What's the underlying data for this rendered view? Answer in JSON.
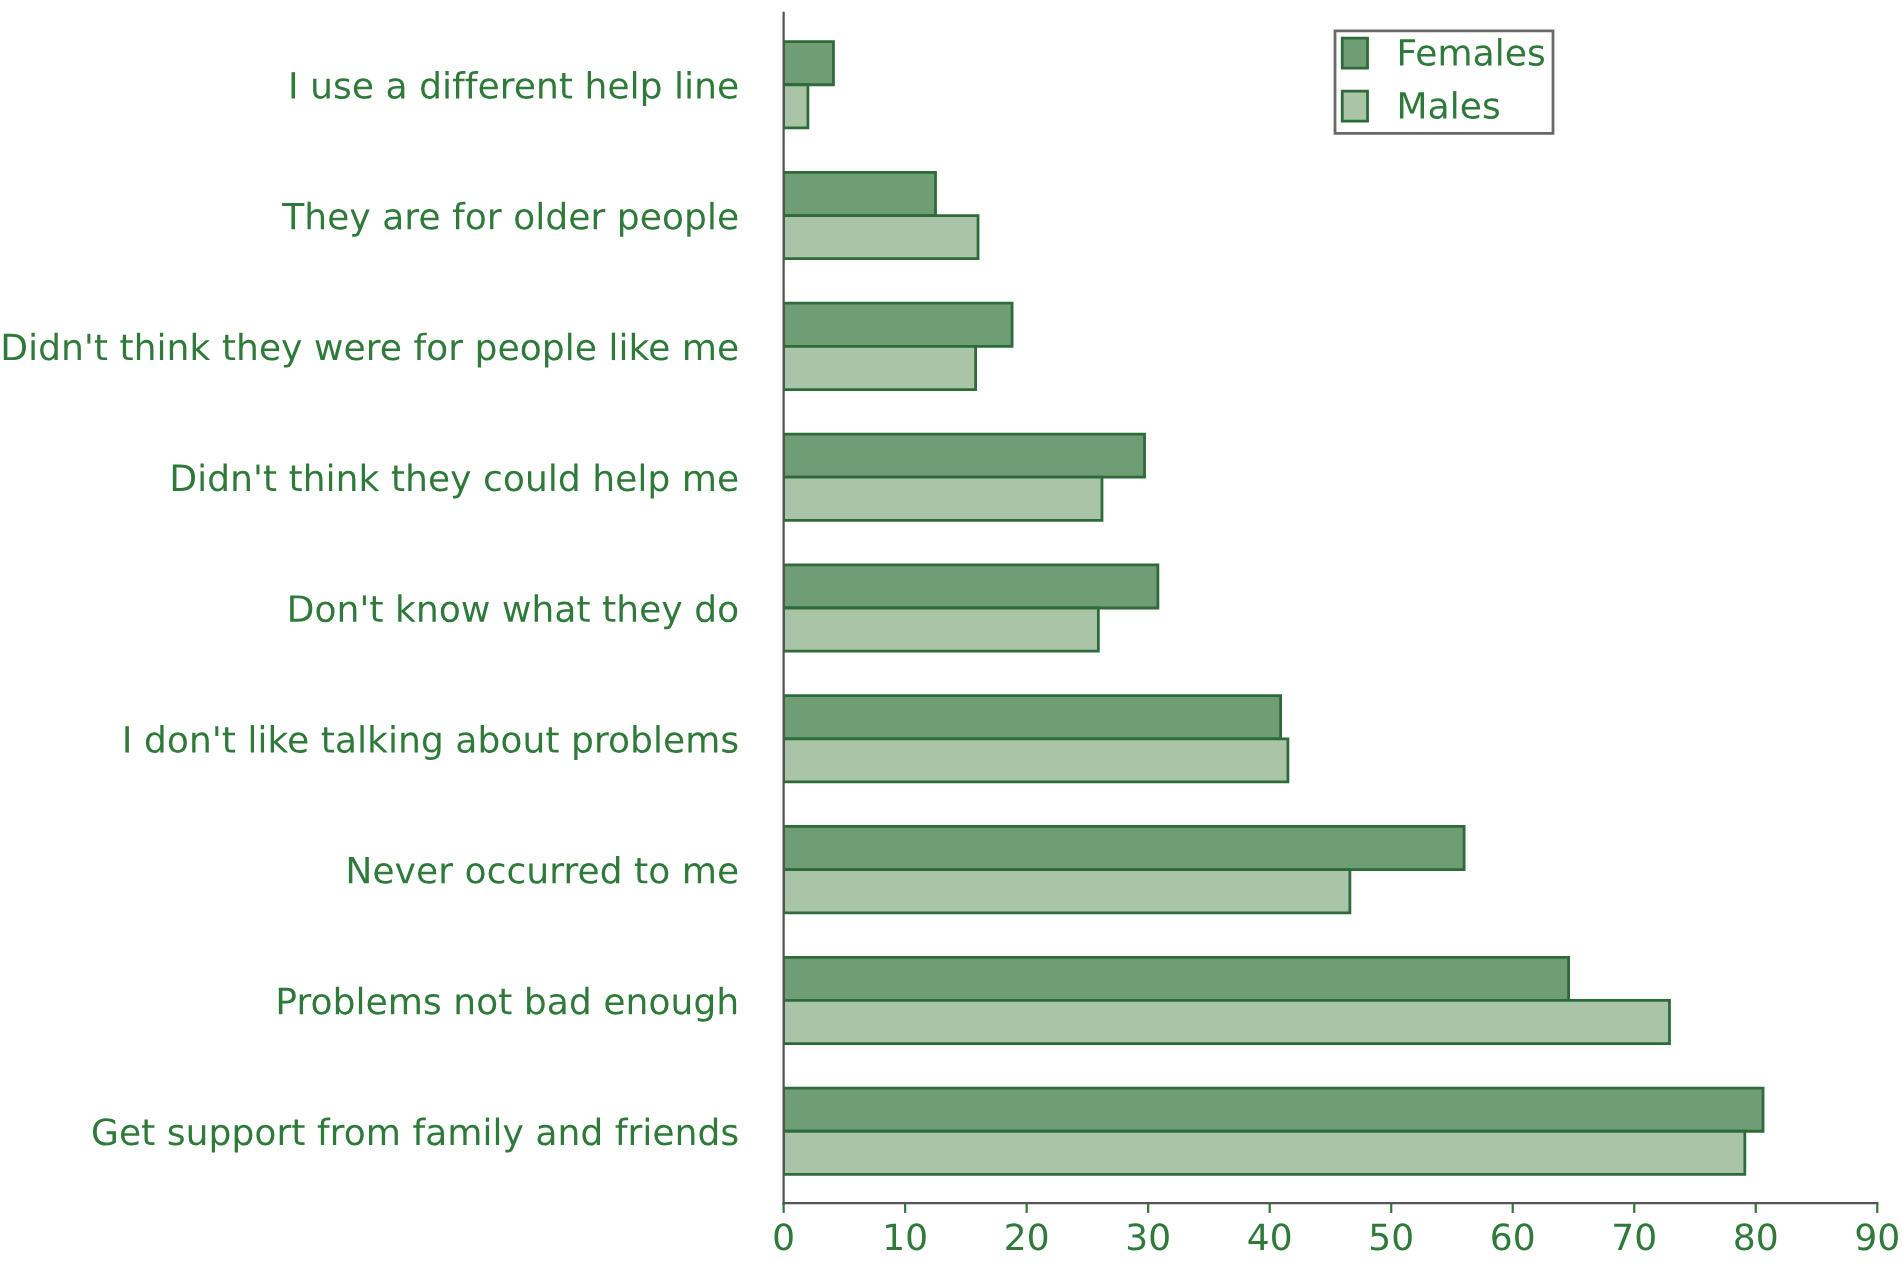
{
  "chart_data": {
    "type": "bar",
    "orientation": "horizontal",
    "categories": [
      "I use a different help line",
      "They are for older people",
      "Didn't think they were for people like me",
      "Didn't think they could help me",
      "Don't know what they do",
      "I don't like talking about problems",
      "Never occurred to me",
      "Problems not bad enough",
      "Get support from family and friends"
    ],
    "series": [
      {
        "name": "Females",
        "color": "#6f9e74",
        "values": [
          4.1,
          12.5,
          18.8,
          29.7,
          30.8,
          40.9,
          56,
          64.6,
          80.6
        ]
      },
      {
        "name": "Males",
        "color": "#a9c4a6",
        "values": [
          2,
          16,
          15.8,
          26.2,
          25.9,
          41.5,
          46.6,
          72.9,
          79.1
        ]
      }
    ],
    "xlim": [
      0,
      90
    ],
    "xticks": [
      0,
      10,
      20,
      30,
      40,
      50,
      60,
      70,
      80,
      90
    ],
    "grid": false,
    "legend": "top right"
  }
}
